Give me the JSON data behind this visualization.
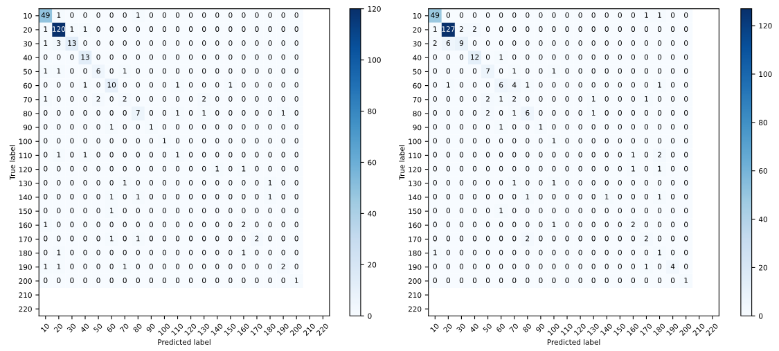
{
  "chart_data": [
    {
      "type": "heatmap",
      "xlabel": "Predicted label",
      "ylabel": "True label",
      "categories": [
        "10",
        "20",
        "30",
        "40",
        "50",
        "60",
        "70",
        "80",
        "90",
        "100",
        "110",
        "120",
        "130",
        "140",
        "150",
        "160",
        "170",
        "180",
        "190",
        "200",
        "210",
        "220"
      ],
      "y_categories": [
        "10",
        "20",
        "30",
        "40",
        "50",
        "60",
        "70",
        "80",
        "90",
        "100",
        "110",
        "120",
        "130",
        "140",
        "150",
        "160",
        "170",
        "180",
        "190",
        "200",
        "210",
        "220"
      ],
      "clim": [
        0,
        120
      ],
      "cticks": [
        0,
        20,
        40,
        60,
        80,
        100,
        120
      ],
      "data_labels": true,
      "cells": [
        [
          49,
          1,
          0,
          0,
          0,
          0,
          0,
          1,
          0,
          0,
          0,
          0,
          0,
          0,
          0,
          0,
          0,
          0,
          0,
          0,
          null,
          null
        ],
        [
          1,
          120,
          1,
          1,
          0,
          0,
          0,
          0,
          0,
          0,
          0,
          0,
          0,
          0,
          0,
          0,
          0,
          0,
          0,
          0,
          null,
          null
        ],
        [
          1,
          3,
          13,
          0,
          0,
          0,
          0,
          0,
          0,
          0,
          0,
          0,
          0,
          0,
          0,
          0,
          0,
          0,
          0,
          0,
          null,
          null
        ],
        [
          0,
          0,
          0,
          13,
          0,
          0,
          0,
          0,
          0,
          0,
          0,
          0,
          0,
          0,
          0,
          0,
          0,
          0,
          0,
          0,
          null,
          null
        ],
        [
          1,
          1,
          0,
          0,
          6,
          0,
          1,
          0,
          0,
          0,
          0,
          0,
          0,
          0,
          0,
          0,
          0,
          0,
          0,
          0,
          null,
          null
        ],
        [
          0,
          0,
          0,
          1,
          0,
          10,
          0,
          0,
          0,
          0,
          1,
          0,
          0,
          0,
          1,
          0,
          0,
          0,
          0,
          0,
          null,
          null
        ],
        [
          1,
          0,
          0,
          0,
          2,
          0,
          2,
          0,
          0,
          0,
          0,
          0,
          2,
          0,
          0,
          0,
          0,
          0,
          0,
          0,
          null,
          null
        ],
        [
          0,
          0,
          0,
          0,
          0,
          0,
          0,
          7,
          0,
          0,
          1,
          0,
          1,
          0,
          0,
          0,
          0,
          0,
          1,
          0,
          null,
          null
        ],
        [
          0,
          0,
          0,
          0,
          0,
          1,
          0,
          0,
          1,
          0,
          0,
          0,
          0,
          0,
          0,
          0,
          0,
          0,
          0,
          0,
          null,
          null
        ],
        [
          0,
          0,
          0,
          0,
          0,
          0,
          0,
          0,
          0,
          1,
          0,
          0,
          0,
          0,
          0,
          0,
          0,
          0,
          0,
          0,
          null,
          null
        ],
        [
          0,
          1,
          0,
          1,
          0,
          0,
          0,
          0,
          0,
          0,
          1,
          0,
          0,
          0,
          0,
          0,
          0,
          0,
          0,
          0,
          null,
          null
        ],
        [
          0,
          0,
          0,
          0,
          0,
          0,
          0,
          0,
          0,
          0,
          0,
          0,
          0,
          1,
          0,
          1,
          0,
          0,
          0,
          0,
          null,
          null
        ],
        [
          0,
          0,
          0,
          0,
          0,
          0,
          1,
          0,
          0,
          0,
          0,
          0,
          0,
          0,
          0,
          0,
          0,
          1,
          0,
          0,
          null,
          null
        ],
        [
          0,
          0,
          0,
          0,
          0,
          1,
          0,
          1,
          0,
          0,
          0,
          0,
          0,
          0,
          0,
          0,
          0,
          1,
          0,
          0,
          null,
          null
        ],
        [
          0,
          0,
          0,
          0,
          0,
          1,
          0,
          0,
          0,
          0,
          0,
          0,
          0,
          0,
          0,
          0,
          0,
          0,
          0,
          0,
          null,
          null
        ],
        [
          1,
          0,
          0,
          0,
          0,
          0,
          0,
          0,
          0,
          0,
          0,
          0,
          0,
          0,
          0,
          2,
          0,
          0,
          0,
          0,
          null,
          null
        ],
        [
          0,
          0,
          0,
          0,
          0,
          1,
          0,
          1,
          0,
          0,
          0,
          0,
          0,
          0,
          0,
          0,
          2,
          0,
          0,
          0,
          null,
          null
        ],
        [
          0,
          1,
          0,
          0,
          0,
          0,
          0,
          0,
          0,
          0,
          0,
          0,
          0,
          0,
          0,
          1,
          0,
          0,
          0,
          0,
          null,
          null
        ],
        [
          1,
          1,
          0,
          0,
          0,
          0,
          1,
          0,
          0,
          0,
          0,
          0,
          0,
          0,
          0,
          0,
          0,
          0,
          2,
          0,
          null,
          null
        ],
        [
          0,
          0,
          0,
          0,
          0,
          0,
          0,
          0,
          0,
          0,
          0,
          0,
          0,
          0,
          0,
          0,
          0,
          0,
          0,
          1,
          null,
          null
        ],
        [
          null,
          null,
          null,
          null,
          null,
          null,
          null,
          null,
          null,
          null,
          null,
          null,
          null,
          null,
          null,
          null,
          null,
          null,
          null,
          null,
          null,
          null
        ],
        [
          null,
          null,
          null,
          null,
          null,
          null,
          null,
          null,
          null,
          null,
          null,
          null,
          null,
          null,
          null,
          null,
          null,
          null,
          null,
          null,
          null,
          null
        ]
      ]
    },
    {
      "type": "heatmap",
      "xlabel": "Predicted label",
      "ylabel": "True label",
      "categories": [
        "10",
        "20",
        "30",
        "40",
        "50",
        "60",
        "70",
        "80",
        "90",
        "100",
        "110",
        "120",
        "130",
        "140",
        "150",
        "160",
        "170",
        "180",
        "190",
        "200",
        "210",
        "220"
      ],
      "y_categories": [
        "10",
        "20",
        "30",
        "40",
        "50",
        "60",
        "70",
        "80",
        "90",
        "100",
        "110",
        "120",
        "130",
        "140",
        "150",
        "160",
        "170",
        "180",
        "190",
        "200",
        "210",
        "220"
      ],
      "clim": [
        0,
        127
      ],
      "cticks": [
        0,
        20,
        40,
        60,
        80,
        100,
        120
      ],
      "data_labels": true,
      "cells": [
        [
          49,
          0,
          0,
          0,
          0,
          0,
          0,
          0,
          0,
          0,
          0,
          0,
          0,
          0,
          0,
          0,
          1,
          1,
          0,
          0,
          null,
          null
        ],
        [
          1,
          127,
          2,
          2,
          0,
          0,
          0,
          0,
          0,
          0,
          0,
          0,
          0,
          0,
          0,
          0,
          0,
          0,
          0,
          0,
          null,
          null
        ],
        [
          2,
          6,
          9,
          0,
          0,
          0,
          0,
          0,
          0,
          0,
          0,
          0,
          0,
          0,
          0,
          0,
          0,
          0,
          0,
          0,
          null,
          null
        ],
        [
          0,
          0,
          0,
          12,
          0,
          1,
          0,
          0,
          0,
          0,
          0,
          0,
          0,
          0,
          0,
          0,
          0,
          0,
          0,
          0,
          null,
          null
        ],
        [
          0,
          0,
          0,
          0,
          7,
          0,
          1,
          0,
          0,
          1,
          0,
          0,
          0,
          0,
          0,
          0,
          0,
          0,
          0,
          0,
          null,
          null
        ],
        [
          0,
          1,
          0,
          0,
          0,
          6,
          4,
          1,
          0,
          0,
          0,
          0,
          0,
          0,
          0,
          0,
          0,
          1,
          0,
          0,
          null,
          null
        ],
        [
          0,
          0,
          0,
          0,
          2,
          1,
          2,
          0,
          0,
          0,
          0,
          0,
          1,
          0,
          0,
          0,
          1,
          0,
          0,
          0,
          null,
          null
        ],
        [
          0,
          0,
          0,
          0,
          2,
          0,
          1,
          6,
          0,
          0,
          0,
          0,
          1,
          0,
          0,
          0,
          0,
          0,
          0,
          0,
          null,
          null
        ],
        [
          0,
          0,
          0,
          0,
          0,
          1,
          0,
          0,
          1,
          0,
          0,
          0,
          0,
          0,
          0,
          0,
          0,
          0,
          0,
          0,
          null,
          null
        ],
        [
          0,
          0,
          0,
          0,
          0,
          0,
          0,
          0,
          0,
          1,
          0,
          0,
          0,
          0,
          0,
          0,
          0,
          0,
          0,
          0,
          null,
          null
        ],
        [
          0,
          0,
          0,
          0,
          0,
          0,
          0,
          0,
          0,
          0,
          0,
          0,
          0,
          0,
          0,
          1,
          0,
          2,
          0,
          0,
          null,
          null
        ],
        [
          0,
          0,
          0,
          0,
          0,
          0,
          0,
          0,
          0,
          0,
          0,
          0,
          0,
          0,
          0,
          1,
          0,
          1,
          0,
          0,
          null,
          null
        ],
        [
          0,
          0,
          0,
          0,
          0,
          0,
          1,
          0,
          0,
          1,
          0,
          0,
          0,
          0,
          0,
          0,
          0,
          0,
          0,
          0,
          null,
          null
        ],
        [
          0,
          0,
          0,
          0,
          0,
          0,
          0,
          1,
          0,
          0,
          0,
          0,
          0,
          1,
          0,
          0,
          0,
          1,
          0,
          0,
          null,
          null
        ],
        [
          0,
          0,
          0,
          0,
          0,
          1,
          0,
          0,
          0,
          0,
          0,
          0,
          0,
          0,
          0,
          0,
          0,
          0,
          0,
          0,
          null,
          null
        ],
        [
          0,
          0,
          0,
          0,
          0,
          0,
          0,
          0,
          0,
          1,
          0,
          0,
          0,
          0,
          0,
          2,
          0,
          0,
          0,
          0,
          null,
          null
        ],
        [
          0,
          0,
          0,
          0,
          0,
          0,
          0,
          2,
          0,
          0,
          0,
          0,
          0,
          0,
          0,
          0,
          2,
          0,
          0,
          0,
          null,
          null
        ],
        [
          1,
          0,
          0,
          0,
          0,
          0,
          0,
          0,
          0,
          0,
          0,
          0,
          0,
          0,
          0,
          0,
          0,
          1,
          0,
          0,
          null,
          null
        ],
        [
          0,
          0,
          0,
          0,
          0,
          0,
          0,
          0,
          0,
          0,
          0,
          0,
          0,
          0,
          0,
          0,
          1,
          0,
          4,
          0,
          null,
          null
        ],
        [
          0,
          0,
          0,
          0,
          0,
          0,
          0,
          0,
          0,
          0,
          0,
          0,
          0,
          0,
          0,
          0,
          0,
          0,
          0,
          1,
          null,
          null
        ],
        [
          null,
          null,
          null,
          null,
          null,
          null,
          null,
          null,
          null,
          null,
          null,
          null,
          null,
          null,
          null,
          null,
          null,
          null,
          null,
          null,
          null,
          null
        ],
        [
          null,
          null,
          null,
          null,
          null,
          null,
          null,
          null,
          null,
          null,
          null,
          null,
          null,
          null,
          null,
          null,
          null,
          null,
          null,
          null,
          null,
          null
        ]
      ]
    }
  ]
}
